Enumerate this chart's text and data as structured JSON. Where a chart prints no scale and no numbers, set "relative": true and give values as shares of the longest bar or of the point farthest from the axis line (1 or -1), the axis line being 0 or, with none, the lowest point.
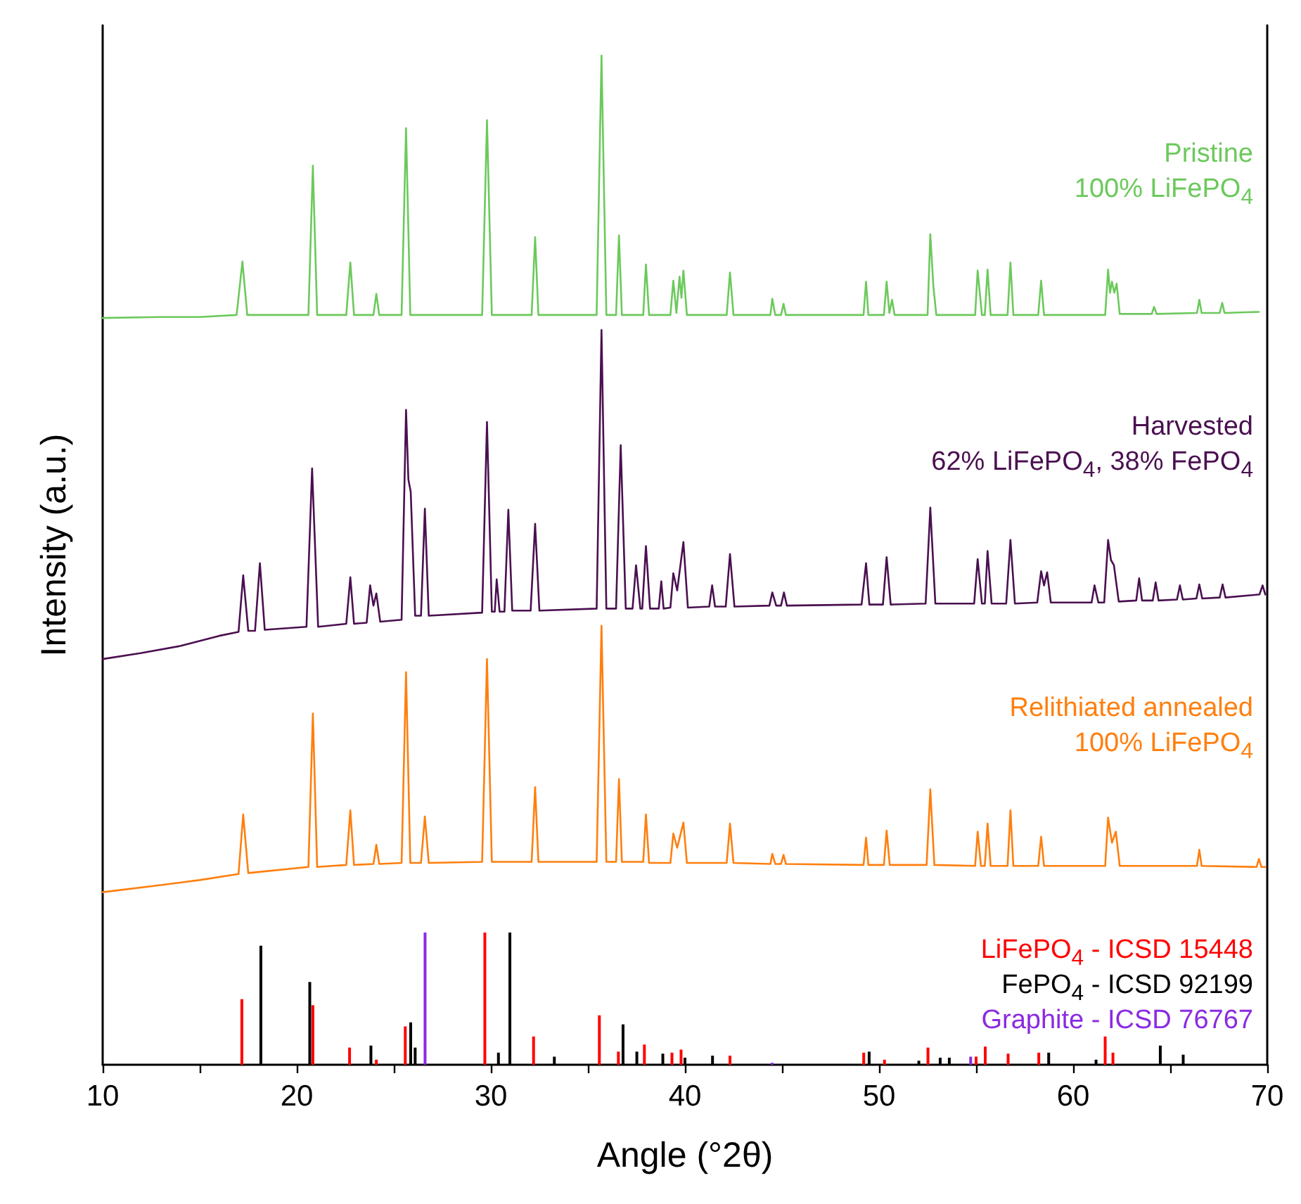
{
  "chart_data": {
    "type": "line",
    "xlabel": "Angle (°2θ)",
    "ylabel": "Intensity (a.u.)",
    "relative": true,
    "xlim": [
      10,
      70
    ],
    "xticks": [
      10,
      {
        "value": 15,
        "label": null
      },
      20,
      {
        "value": 25,
        "label": null
      },
      30,
      {
        "value": 35,
        "label": null
      },
      40,
      {
        "value": 45,
        "label": null
      },
      50,
      {
        "value": 55,
        "label": null
      },
      60,
      {
        "value": 65,
        "label": null
      },
      70
    ],
    "legend": false,
    "grid": false,
    "series": [
      {
        "name": "Pristine\n100% LiFePO$_{4}$",
        "color": "#6cc95c",
        "x": [
          10,
          13,
          15,
          16.9,
          17.2,
          17.45,
          20.6,
          20.83,
          21.05,
          22.55,
          22.76,
          22.95,
          23.95,
          24.1,
          24.25,
          25.4,
          25.63,
          25.85,
          29.55,
          29.8,
          30.05,
          32.1,
          32.28,
          32.45,
          35.45,
          35.7,
          35.95,
          36.45,
          36.6,
          36.75,
          37.85,
          37.99,
          38.15,
          39.25,
          39.4,
          39.56,
          39.72,
          39.82,
          39.92,
          40.1,
          42.15,
          42.32,
          42.5,
          44.4,
          44.5,
          44.65,
          44.95,
          45.08,
          45.2,
          49.2,
          49.33,
          49.45,
          50.25,
          50.39,
          50.53,
          50.67,
          50.8,
          52.5,
          52.64,
          52.8,
          52.95,
          54.95,
          55.08,
          55.3,
          55.45,
          55.59,
          55.75,
          56.62,
          56.77,
          56.92,
          58.2,
          58.35,
          58.5,
          61.65,
          61.8,
          61.9,
          62.0,
          62.12,
          62.24,
          62.4,
          64.05,
          64.17,
          64.3,
          66.38,
          66.5,
          66.62,
          67.55,
          67.68,
          67.8,
          69.57
        ],
        "values": [
          0.74,
          0.741,
          0.741,
          0.743,
          0.796,
          0.743,
          0.743,
          0.891,
          0.743,
          0.743,
          0.795,
          0.743,
          0.743,
          0.764,
          0.743,
          0.743,
          0.928,
          0.743,
          0.743,
          0.936,
          0.743,
          0.743,
          0.82,
          0.743,
          0.743,
          1,
          0.743,
          0.743,
          0.822,
          0.743,
          0.743,
          0.793,
          0.743,
          0.743,
          0.777,
          0.745,
          0.781,
          0.76,
          0.787,
          0.743,
          0.743,
          0.785,
          0.743,
          0.743,
          0.759,
          0.743,
          0.743,
          0.754,
          0.743,
          0.743,
          0.776,
          0.743,
          0.743,
          0.776,
          0.745,
          0.758,
          0.743,
          0.743,
          0.823,
          0.771,
          0.743,
          0.743,
          0.787,
          0.743,
          0.743,
          0.788,
          0.743,
          0.743,
          0.795,
          0.743,
          0.743,
          0.777,
          0.743,
          0.743,
          0.788,
          0.765,
          0.776,
          0.765,
          0.774,
          0.744,
          0.744,
          0.751,
          0.744,
          0.745,
          0.758,
          0.745,
          0.745,
          0.755,
          0.745,
          0.746
        ]
      },
      {
        "name": "Harvested\n62% LiFePO$_{4}$, 38% FePO$_{4}$",
        "color": "#4a1050",
        "x": [
          10,
          12,
          14,
          16,
          17.0,
          17.24,
          17.5,
          17.85,
          18.1,
          18.35,
          20.5,
          20.79,
          21.1,
          22.55,
          22.76,
          22.95,
          23.6,
          23.78,
          23.95,
          24.1,
          24.3,
          25.4,
          25.63,
          25.75,
          25.87,
          26.1,
          26.4,
          26.6,
          26.8,
          29.55,
          29.8,
          30.05,
          30.2,
          30.3,
          30.45,
          30.7,
          30.9,
          31.1,
          32.05,
          32.28,
          32.5,
          35.45,
          35.7,
          35.95,
          36.45,
          36.69,
          36.95,
          37.3,
          37.48,
          37.7,
          37.8,
          37.99,
          38.2,
          38.65,
          38.78,
          38.9,
          39.25,
          39.4,
          39.6,
          39.92,
          40.15,
          41.25,
          41.4,
          41.55,
          42.1,
          42.32,
          42.55,
          44.35,
          44.5,
          44.7,
          44.95,
          45.1,
          45.25,
          49.1,
          49.33,
          49.5,
          50.2,
          50.39,
          50.6,
          52.4,
          52.64,
          52.9,
          54.9,
          55.08,
          55.3,
          55.45,
          55.59,
          55.8,
          56.55,
          56.77,
          57.0,
          58.15,
          58.35,
          58.5,
          58.66,
          58.85,
          60.95,
          61.1,
          61.3,
          61.6,
          61.8,
          61.95,
          62.1,
          62.35,
          63.25,
          63.4,
          63.55,
          64.1,
          64.25,
          64.4,
          65.35,
          65.5,
          65.65,
          66.35,
          66.5,
          66.65,
          67.55,
          67.7,
          67.85,
          69.6,
          69.76,
          69.9
        ],
        "values": [
          0.402,
          0.408,
          0.415,
          0.425,
          0.429,
          0.485,
          0.43,
          0.43,
          0.497,
          0.431,
          0.434,
          0.591,
          0.434,
          0.437,
          0.483,
          0.437,
          0.438,
          0.475,
          0.455,
          0.467,
          0.439,
          0.441,
          0.649,
          0.58,
          0.568,
          0.445,
          0.445,
          0.551,
          0.445,
          0.448,
          0.637,
          0.449,
          0.449,
          0.481,
          0.449,
          0.449,
          0.55,
          0.45,
          0.45,
          0.536,
          0.45,
          0.452,
          0.728,
          0.452,
          0.452,
          0.614,
          0.452,
          0.452,
          0.495,
          0.452,
          0.452,
          0.514,
          0.452,
          0.452,
          0.479,
          0.452,
          0.453,
          0.487,
          0.47,
          0.518,
          0.453,
          0.454,
          0.475,
          0.454,
          0.454,
          0.506,
          0.454,
          0.455,
          0.468,
          0.455,
          0.455,
          0.468,
          0.455,
          0.456,
          0.497,
          0.456,
          0.456,
          0.503,
          0.456,
          0.457,
          0.552,
          0.457,
          0.457,
          0.501,
          0.457,
          0.457,
          0.509,
          0.457,
          0.457,
          0.52,
          0.457,
          0.458,
          0.489,
          0.475,
          0.488,
          0.458,
          0.458,
          0.475,
          0.458,
          0.458,
          0.52,
          0.5,
          0.495,
          0.459,
          0.46,
          0.482,
          0.46,
          0.46,
          0.478,
          0.46,
          0.461,
          0.475,
          0.461,
          0.462,
          0.476,
          0.462,
          0.463,
          0.476,
          0.463,
          0.466,
          0.475,
          0.466
        ]
      },
      {
        "name": "Relithiated annealed\n100% LiFePO$_{4}$",
        "color": "#ff7f0e",
        "x": [
          10,
          13,
          15,
          17.0,
          17.24,
          17.5,
          20.6,
          20.83,
          21.05,
          22.55,
          22.76,
          22.95,
          23.95,
          24.1,
          24.25,
          25.4,
          25.63,
          25.85,
          26.4,
          26.6,
          26.8,
          29.55,
          29.8,
          30.05,
          32.1,
          32.28,
          32.45,
          35.45,
          35.7,
          35.95,
          36.45,
          36.6,
          36.75,
          37.85,
          37.99,
          38.15,
          39.25,
          39.4,
          39.6,
          39.92,
          40.1,
          42.15,
          42.32,
          42.5,
          44.4,
          44.5,
          44.65,
          44.95,
          45.08,
          45.2,
          49.2,
          49.33,
          49.45,
          50.25,
          50.39,
          50.55,
          52.45,
          52.64,
          52.85,
          54.95,
          55.08,
          55.25,
          55.45,
          55.59,
          55.75,
          56.62,
          56.77,
          56.92,
          58.2,
          58.35,
          58.5,
          61.65,
          61.8,
          62.0,
          62.2,
          62.4,
          66.38,
          66.5,
          66.62,
          69.45,
          69.57,
          69.7,
          69.9
        ],
        "values": [
          0.171,
          0.178,
          0.183,
          0.189,
          0.248,
          0.19,
          0.196,
          0.348,
          0.196,
          0.198,
          0.252,
          0.198,
          0.199,
          0.218,
          0.199,
          0.2,
          0.389,
          0.2,
          0.2,
          0.246,
          0.2,
          0.201,
          0.402,
          0.201,
          0.201,
          0.275,
          0.201,
          0.201,
          0.435,
          0.201,
          0.201,
          0.283,
          0.201,
          0.201,
          0.248,
          0.2,
          0.2,
          0.229,
          0.215,
          0.24,
          0.2,
          0.2,
          0.239,
          0.2,
          0.199,
          0.209,
          0.199,
          0.199,
          0.208,
          0.199,
          0.198,
          0.225,
          0.198,
          0.198,
          0.232,
          0.198,
          0.198,
          0.273,
          0.198,
          0.197,
          0.231,
          0.197,
          0.197,
          0.239,
          0.197,
          0.197,
          0.252,
          0.197,
          0.197,
          0.226,
          0.197,
          0.197,
          0.245,
          0.22,
          0.231,
          0.197,
          0.197,
          0.213,
          0.197,
          0.196,
          0.204,
          0.196,
          0.196
        ]
      },
      {
        "type": "bar",
        "name": "LiFePO$_{4}$ - ICSD 15448",
        "color": "#ff0000",
        "x": [
          17.17,
          20.83,
          22.72,
          24.1,
          25.59,
          29.69,
          32.2,
          35.59,
          36.57,
          37.91,
          39.33,
          39.8,
          42.32,
          49.21,
          50.28,
          52.52,
          55.0,
          55.47,
          56.65,
          58.23,
          61.65,
          62.05
        ],
        "values": [
          0.065,
          0.059,
          0.017,
          0.005,
          0.038,
          0.131,
          0.028,
          0.049,
          0.013,
          0.02,
          0.012,
          0.015,
          0.009,
          0.012,
          0.005,
          0.017,
          0.008,
          0.018,
          0.011,
          0.012,
          0.028,
          0.012
        ]
      },
      {
        "type": "bar",
        "name": "FePO$_{4}$ - ICSD 92199",
        "color": "#000000",
        "x": [
          18.15,
          20.67,
          23.82,
          25.87,
          26.1,
          30.39,
          30.98,
          33.27,
          36.81,
          37.52,
          38.86,
          40.0,
          41.42,
          49.49,
          52.05,
          53.15,
          53.62,
          58.74,
          61.18,
          64.49,
          65.67
        ],
        "values": [
          0.118,
          0.082,
          0.019,
          0.042,
          0.017,
          0.012,
          0.131,
          0.008,
          0.04,
          0.013,
          0.011,
          0.007,
          0.009,
          0.013,
          0.004,
          0.007,
          0.007,
          0.012,
          0.005,
          0.019,
          0.01
        ]
      },
      {
        "type": "bar",
        "name": "Graphite - ICSD 76767",
        "color": "#8a2be2",
        "x": [
          26.61,
          44.49,
          54.72
        ],
        "values": [
          0.131,
          0.002,
          0.008
        ]
      }
    ]
  }
}
